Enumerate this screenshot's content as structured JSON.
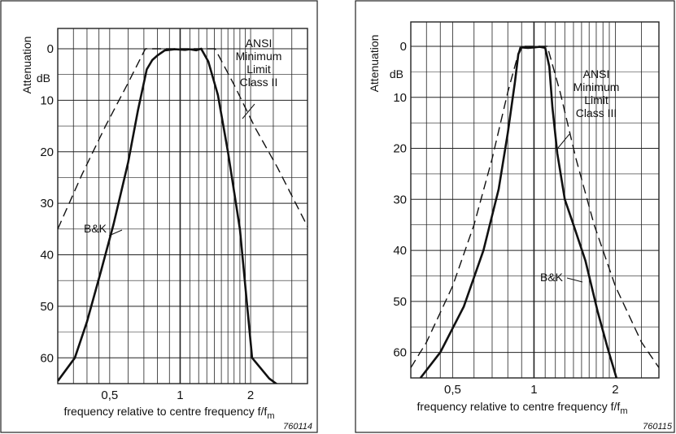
{
  "chart_data": [
    {
      "type": "line",
      "ylabel": "Attenuation",
      "yunit": "dB",
      "xlabel": "frequency relative to centre frequency f/f",
      "xlabel_sub": "m",
      "figure_id": "760114",
      "x_scale": "log",
      "xlim": [
        0.3,
        3.5
      ],
      "ylim": [
        0,
        65
      ],
      "y_inverted": true,
      "xticks": [
        {
          "value": 0.5,
          "label": "0,5"
        },
        {
          "value": 1,
          "label": "1"
        },
        {
          "value": 2,
          "label": "2"
        }
      ],
      "yticks": [
        0,
        10,
        20,
        30,
        40,
        50,
        60
      ],
      "grid": true,
      "annotations": [
        {
          "lines": [
            "ANSI",
            "Minimum",
            "Limit",
            "Class II"
          ]
        },
        {
          "lines": [
            "B&K"
          ]
        }
      ],
      "series": [
        {
          "style": "dashed",
          "x": [
            0.3,
            0.38,
            0.48,
            0.6,
            0.71,
            1.41,
            1.7,
            2.1,
            2.6,
            3.5
          ],
          "y": [
            35,
            24.5,
            15,
            6.6,
            0,
            0,
            7,
            15.5,
            23,
            34.5
          ]
        },
        {
          "style": "solid",
          "x": [
            0.3,
            0.355,
            0.4,
            0.46,
            0.52,
            0.6,
            0.66,
            0.72,
            0.76,
            0.8,
            0.86,
            0.95,
            1.05,
            1.1,
            1.17,
            1.23,
            1.32,
            1.45,
            1.6,
            1.8,
            2.03,
            2.4,
            2.75
          ],
          "y": [
            64.5,
            60,
            53,
            43,
            34,
            22,
            12,
            4,
            2.2,
            1.3,
            0.3,
            0.1,
            0.2,
            0.1,
            0.3,
            0,
            2.5,
            9,
            20,
            35,
            60,
            64,
            66
          ]
        }
      ]
    },
    {
      "type": "line",
      "ylabel": "Attenuation",
      "yunit": "dB",
      "xlabel": "frequency relative to centre frequency f/f",
      "xlabel_sub": "m",
      "figure_id": "760115",
      "x_scale": "log",
      "xlim": [
        0.35,
        2.9
      ],
      "ylim": [
        0,
        65
      ],
      "y_inverted": true,
      "xticks": [
        {
          "value": 0.5,
          "label": "0,5"
        },
        {
          "value": 1,
          "label": "1"
        },
        {
          "value": 2,
          "label": "2"
        }
      ],
      "yticks": [
        0,
        10,
        20,
        30,
        40,
        50,
        60
      ],
      "grid": true,
      "annotations": [
        {
          "lines": [
            "ANSI",
            "Minimum",
            "Limit",
            "Class III"
          ]
        },
        {
          "lines": [
            "B&K"
          ]
        }
      ],
      "series": [
        {
          "style": "dashed",
          "x": [
            0.35,
            0.4,
            0.5,
            0.6,
            0.7,
            0.8,
            0.89,
            1.12,
            1.25,
            1.43,
            1.67,
            2.0,
            2.5,
            2.9
          ],
          "y": [
            63,
            58,
            47,
            35,
            22,
            9,
            0,
            0,
            9,
            22,
            35,
            47,
            58,
            63
          ]
        },
        {
          "style": "solid",
          "x": [
            0.38,
            0.45,
            0.55,
            0.65,
            0.74,
            0.8,
            0.85,
            0.875,
            0.9,
            0.95,
            1.0,
            1.05,
            1.1,
            1.14,
            1.17,
            1.22,
            1.3,
            1.4,
            1.55,
            1.72,
            1.87,
            2.02
          ],
          "y": [
            65,
            60,
            51,
            40,
            28,
            17,
            7,
            1.5,
            0.2,
            0.3,
            0.2,
            0.1,
            0.3,
            4,
            12,
            21,
            30,
            35,
            42,
            52,
            59,
            65
          ]
        }
      ]
    }
  ]
}
